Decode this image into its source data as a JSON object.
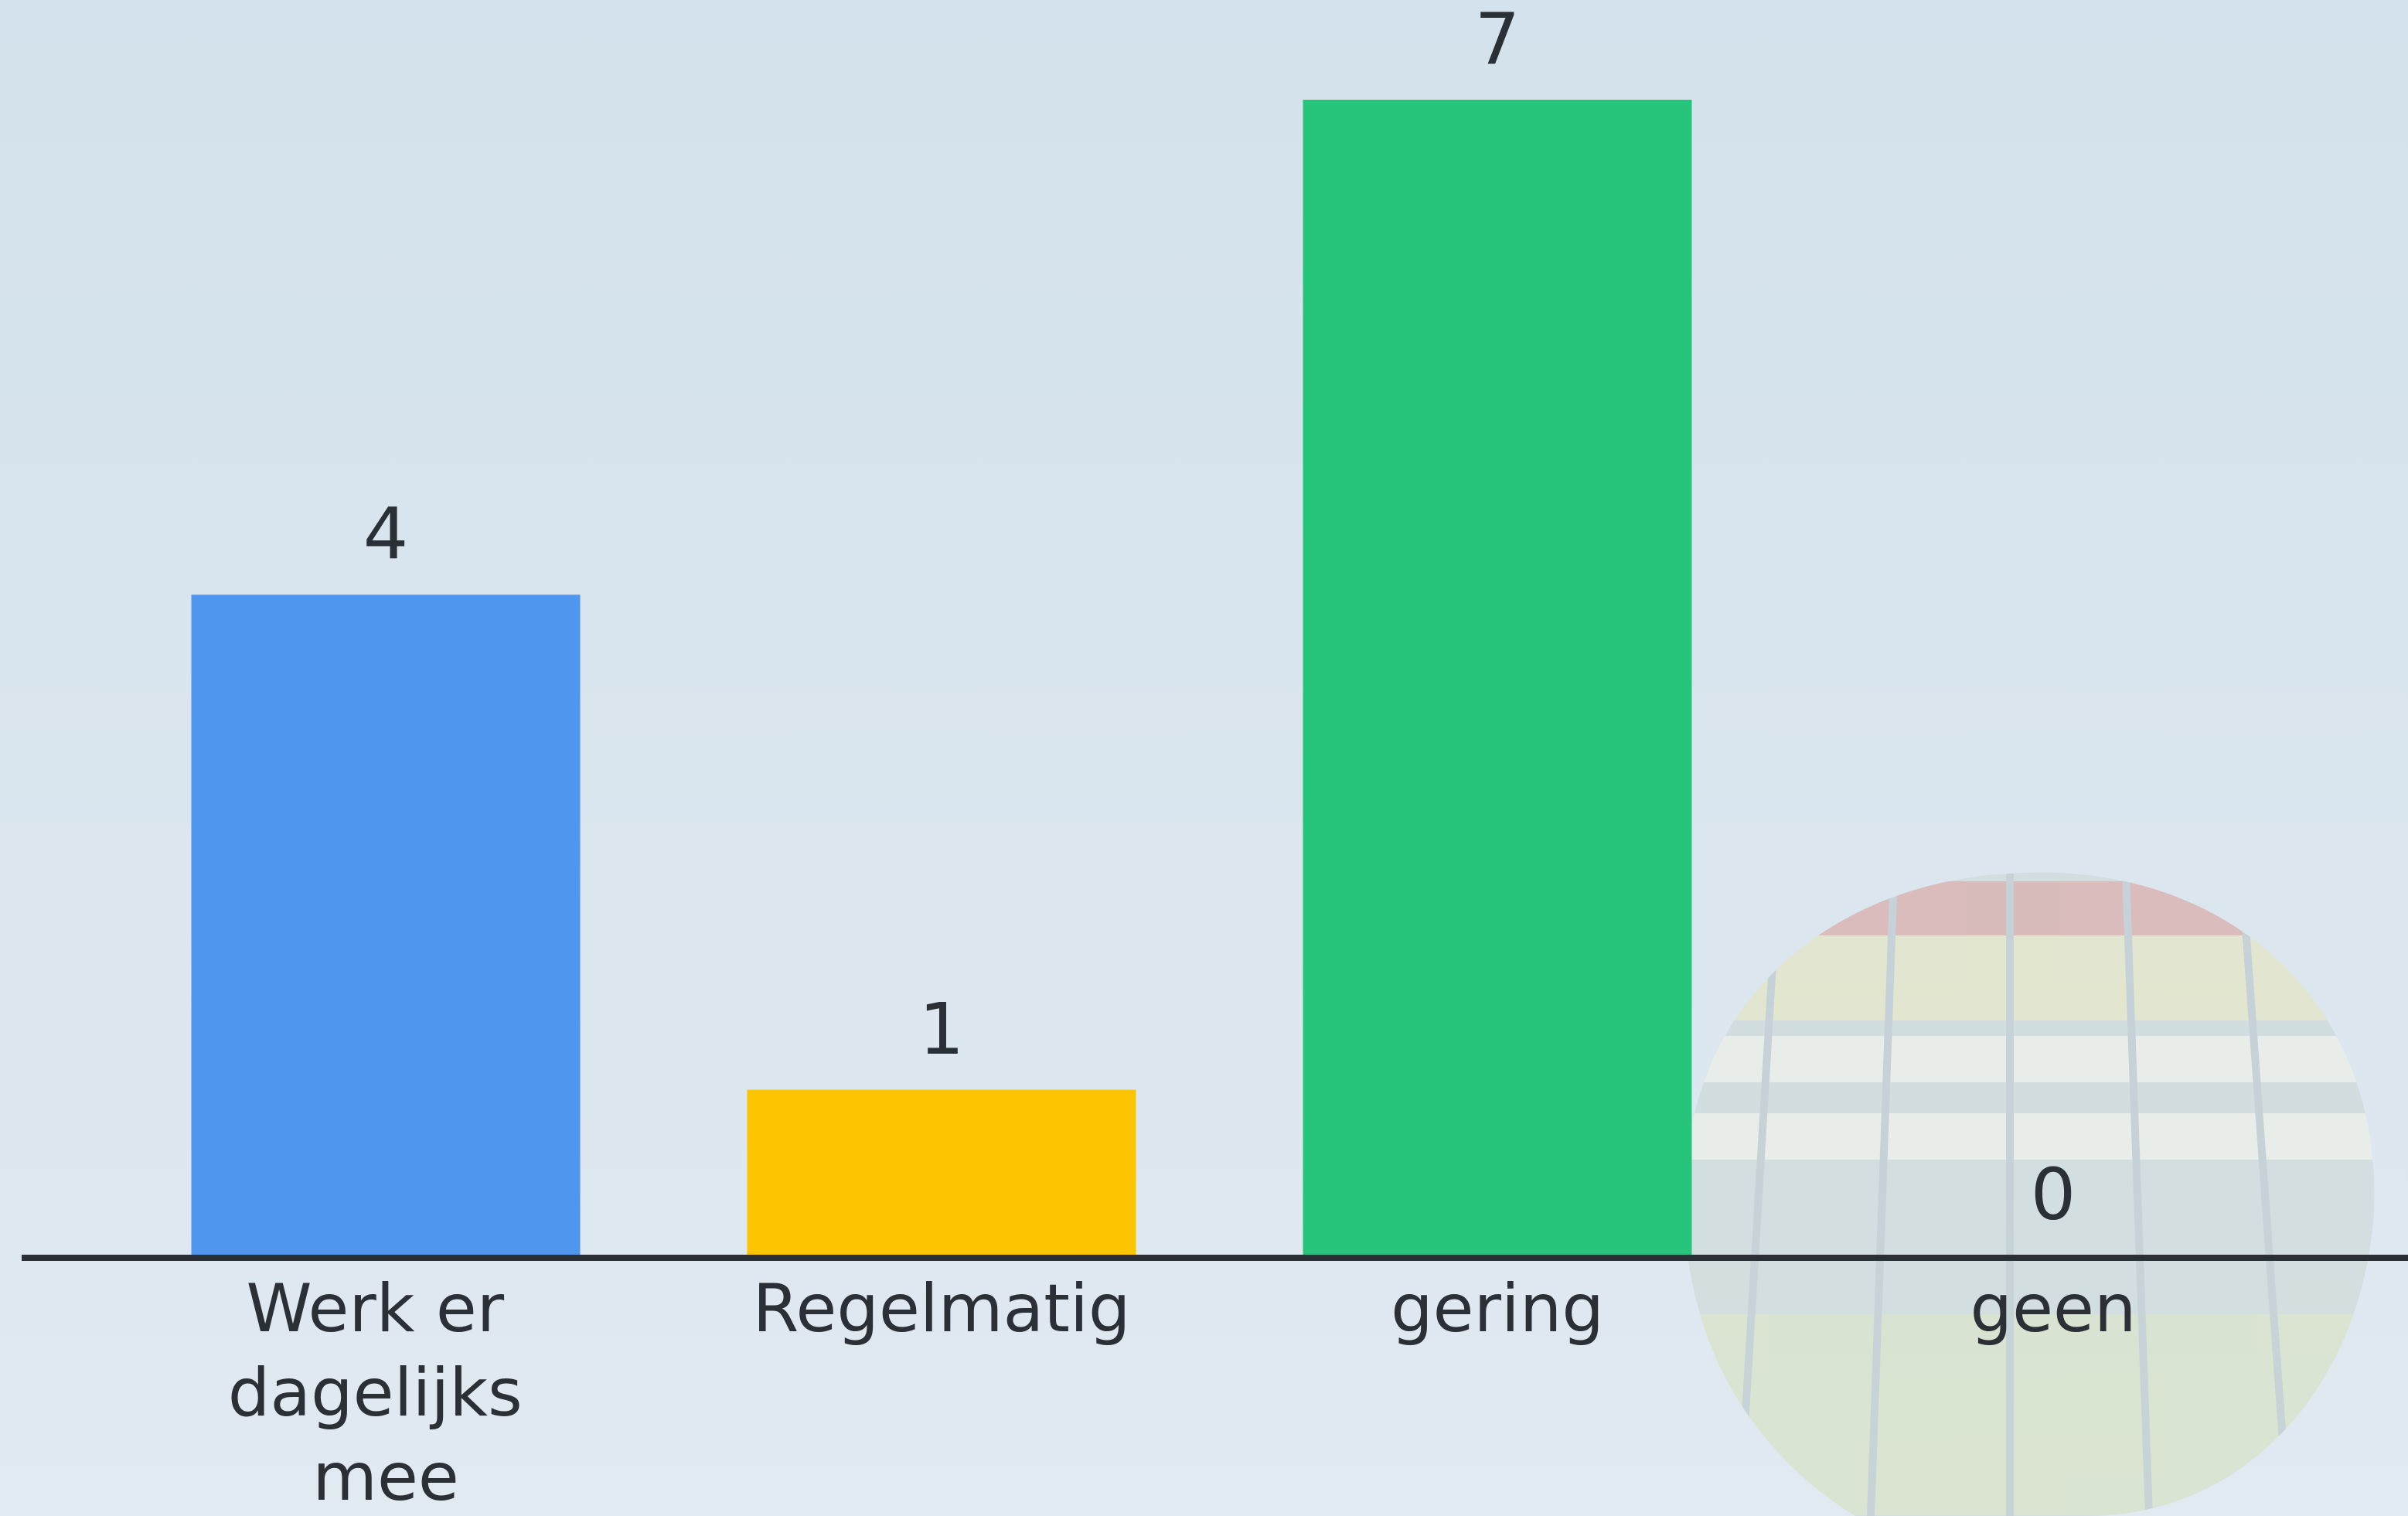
{
  "chart_data": {
    "type": "bar",
    "categories": [
      "Werk er dagelijks mee",
      "Regelmatig",
      "gering",
      "geen"
    ],
    "values": [
      4,
      1,
      7,
      0
    ],
    "colors": [
      "#4f97ee",
      "#fdc500",
      "#27c47c",
      "#8e8e8e"
    ]
  }
}
